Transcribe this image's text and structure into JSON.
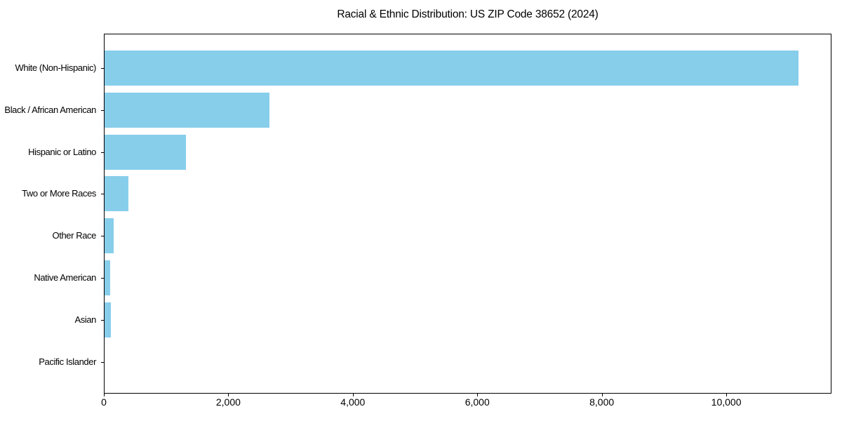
{
  "figure": {
    "background": "#ffffff"
  },
  "chart_data": {
    "type": "bar",
    "orientation": "horizontal",
    "title": "Racial & Ethnic Distribution: US ZIP Code 38652 (2024)",
    "categories": [
      "White (Non-Hispanic)",
      "Black / African American",
      "Hispanic or Latino",
      "Two or More Races",
      "Other Race",
      "Native American",
      "Asian",
      "Pacific Islander"
    ],
    "values": [
      11150,
      2650,
      1310,
      385,
      150,
      95,
      105,
      0
    ],
    "xlabel": "",
    "ylabel": "",
    "xlim": [
      0,
      11690
    ],
    "xticks": [
      0,
      2000,
      4000,
      6000,
      8000,
      10000
    ],
    "xtick_labels": [
      "0",
      "2,000",
      "4,000",
      "6,000",
      "8,000",
      "10,000"
    ],
    "bar_color": "#87CEEB",
    "axis_color": "#000000",
    "text_color": "#000000",
    "grid": false,
    "legend": false
  }
}
